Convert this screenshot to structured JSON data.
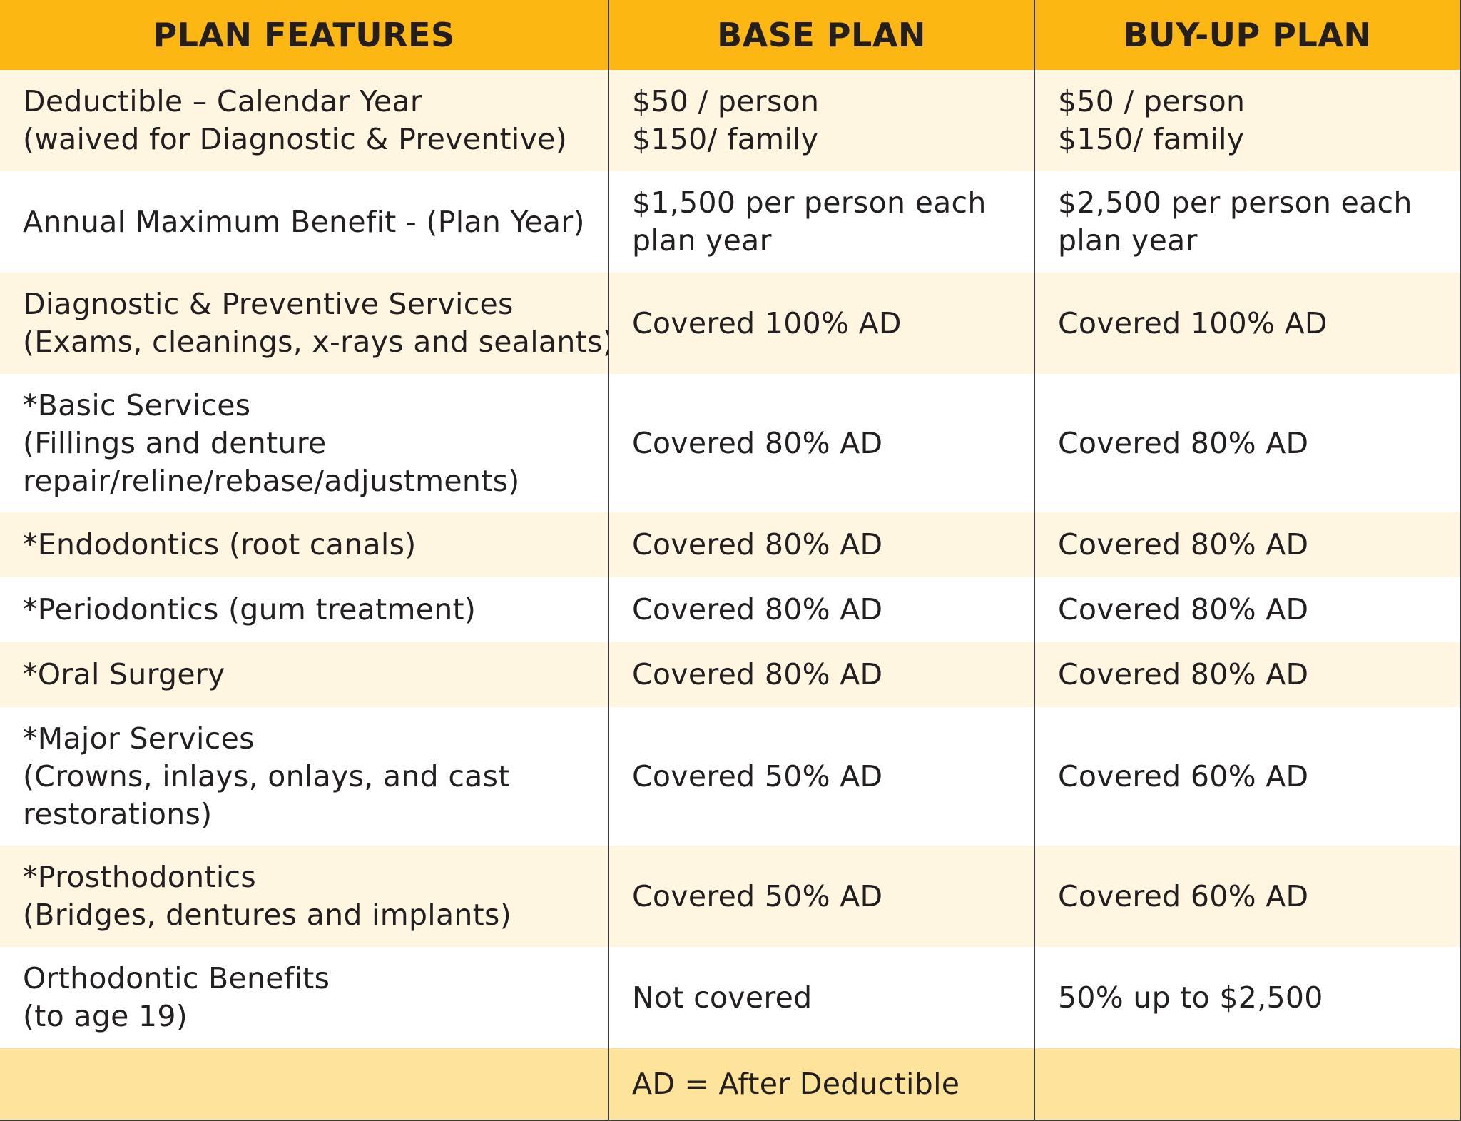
{
  "headers": {
    "features": "PLAN FEATURES",
    "base": "BASE PLAN",
    "buyup": "BUY-UP PLAN"
  },
  "rows": [
    {
      "feature": [
        "Deductible – Calendar Year",
        "(waived for Diagnostic & Preventive)"
      ],
      "base": [
        "$50 / person",
        "$150/ family"
      ],
      "buyup": [
        "$50 / person",
        "$150/ family"
      ]
    },
    {
      "feature": [
        "Annual Maximum Benefit - (Plan Year)"
      ],
      "base": [
        "$1,500 per person each",
        "plan year"
      ],
      "buyup": [
        "$2,500 per person each",
        "plan year"
      ]
    },
    {
      "feature": [
        "Diagnostic & Preventive Services",
        "(Exams, cleanings, x-rays and sealants)"
      ],
      "base": [
        "Covered 100% AD"
      ],
      "buyup": [
        "Covered 100% AD"
      ]
    },
    {
      "feature": [
        "*Basic Services",
        "(Fillings and denture",
        "repair/reline/rebase/adjustments)"
      ],
      "base": [
        "Covered 80% AD"
      ],
      "buyup": [
        "Covered 80% AD"
      ]
    },
    {
      "feature": [
        "*Endodontics (root canals)"
      ],
      "base": [
        "Covered 80% AD"
      ],
      "buyup": [
        "Covered 80% AD"
      ]
    },
    {
      "feature": [
        "*Periodontics (gum treatment)"
      ],
      "base": [
        "Covered 80% AD"
      ],
      "buyup": [
        "Covered 80% AD"
      ]
    },
    {
      "feature": [
        "*Oral Surgery"
      ],
      "base": [
        "Covered 80% AD"
      ],
      "buyup": [
        "Covered 80% AD"
      ]
    },
    {
      "feature": [
        "*Major Services",
        "(Crowns, inlays, onlays, and cast",
        "restorations)"
      ],
      "base": [
        "Covered 50% AD"
      ],
      "buyup": [
        "Covered 60% AD"
      ]
    },
    {
      "feature": [
        "*Prosthodontics",
        "(Bridges, dentures and implants)"
      ],
      "base": [
        "Covered 50% AD"
      ],
      "buyup": [
        "Covered 60% AD"
      ]
    },
    {
      "feature": [
        "Orthodontic Benefits",
        "(to age 19)"
      ],
      "base": [
        "Not covered"
      ],
      "buyup": [
        "50% up to $2,500"
      ]
    }
  ],
  "footer": {
    "note": "AD = After Deductible"
  },
  "colors": {
    "header": "#fdb712",
    "row_odd": "#fff6e2",
    "row_even": "#ffffff",
    "footer": "#fee39a",
    "rule": "#3a3a3a"
  }
}
